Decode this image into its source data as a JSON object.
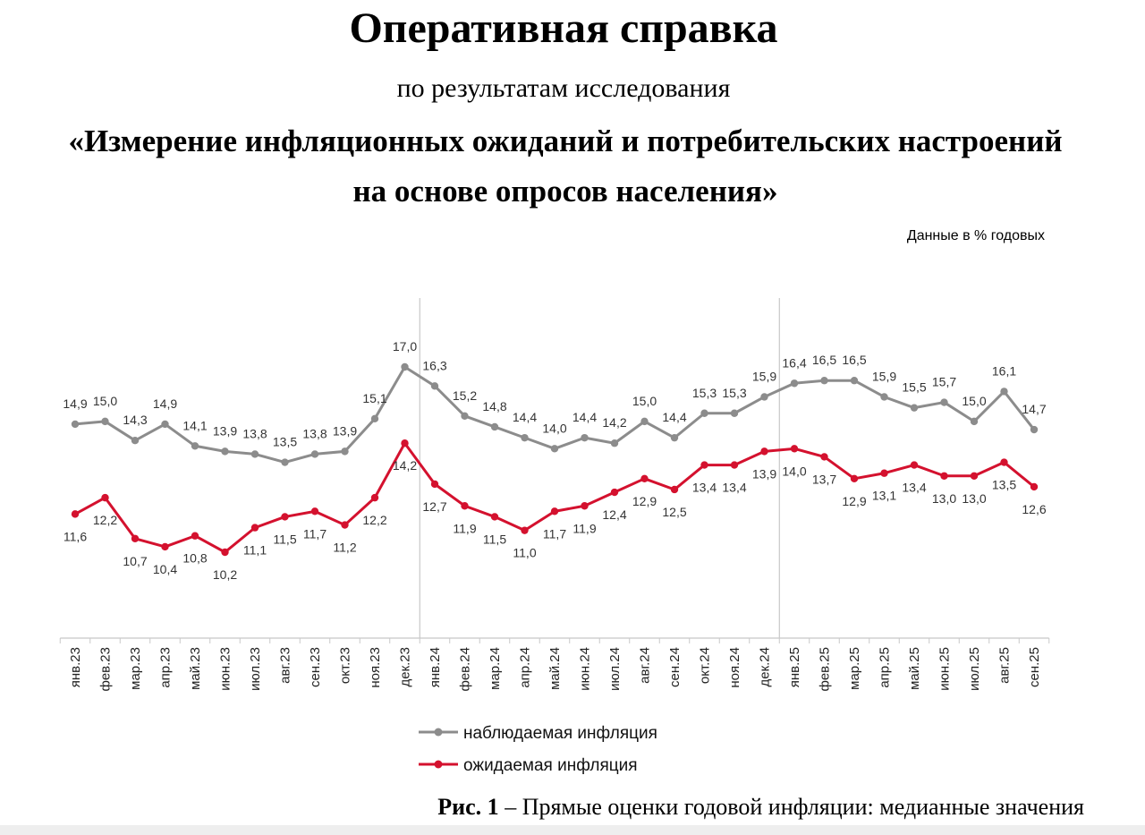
{
  "header": {
    "title": "Оперативная справка",
    "subtitle": "по результатам исследования",
    "topic_line1": "«Измерение инфляционных ожиданий и потребительских настроений",
    "topic_line2": "на основе опросов населения»"
  },
  "units_note": "Данные в % годовых",
  "caption": {
    "fig": "Рис. 1",
    "text": " – Прямые оценки годовой инфляции: медианные значения"
  },
  "colors": {
    "observed": "#8c8c8c",
    "expected": "#d4112e",
    "axis": "#c8c8c8",
    "divider": "#bdbdbd"
  },
  "chart_data": {
    "type": "line",
    "title": "",
    "xlabel": "",
    "ylabel": "",
    "ylim": [
      6,
      19
    ],
    "grid": false,
    "legend": "bottom-center",
    "year_dividers_after": [
      "дек.23",
      "дек.24"
    ],
    "categories": [
      "янв.23",
      "фев.23",
      "мар.23",
      "апр.23",
      "май.23",
      "июн.23",
      "июл.23",
      "авг.23",
      "сен.23",
      "окт.23",
      "ноя.23",
      "дек.23",
      "янв.24",
      "фев.24",
      "мар.24",
      "апр.24",
      "май.24",
      "июн.24",
      "июл.24",
      "авг.24",
      "сен.24",
      "окт.24",
      "ноя.24",
      "дек.24",
      "янв.25",
      "фев.25",
      "мар.25",
      "апр.25",
      "май.25",
      "июн.25",
      "июл.25",
      "авг.25",
      "сен.25"
    ],
    "series": [
      {
        "name": "наблюдаемая инфляция",
        "key": "observed",
        "values": [
          14.9,
          15.0,
          14.3,
          14.9,
          14.1,
          13.9,
          13.8,
          13.5,
          13.8,
          13.9,
          15.1,
          17.0,
          16.3,
          15.2,
          14.8,
          14.4,
          14.0,
          14.4,
          14.2,
          15.0,
          14.4,
          15.3,
          15.3,
          15.9,
          16.4,
          16.5,
          16.5,
          15.9,
          15.5,
          15.7,
          15.0,
          16.1,
          14.7
        ],
        "labels": [
          "14,9",
          "15,0",
          "14,3",
          "14,9",
          "14,1",
          "13,9",
          "13,8",
          "13,5",
          "13,8",
          "13,9",
          "15,1",
          "17,0",
          "16,3",
          "15,2",
          "14,8",
          "14,4",
          "14,0",
          "14,4",
          "14,2",
          "15,0",
          "14,4",
          "15,3",
          "15,3",
          "15,9",
          "16,4",
          "16,5",
          "16,5",
          "15,9",
          "15,5",
          "15,7",
          "15,0",
          "16,1",
          "14,7"
        ]
      },
      {
        "name": "ожидаемая инфляция",
        "key": "expected",
        "values": [
          11.6,
          12.2,
          10.7,
          10.4,
          10.8,
          10.2,
          11.1,
          11.5,
          11.7,
          11.2,
          12.2,
          14.2,
          12.7,
          11.9,
          11.5,
          11.0,
          11.7,
          11.9,
          12.4,
          12.9,
          12.5,
          13.4,
          13.4,
          13.9,
          14.0,
          13.7,
          12.9,
          13.1,
          13.4,
          13.0,
          13.0,
          13.5,
          12.6
        ],
        "labels": [
          "11,6",
          "12,2",
          "10,7",
          "10,4",
          "10,8",
          "10,2",
          "11,1",
          "11,5",
          "11,7",
          "11,2",
          "12,2",
          "14,2",
          "12,7",
          "11,9",
          "11,5",
          "11,0",
          "11,7",
          "11,9",
          "12,4",
          "12,9",
          "12,5",
          "13,4",
          "13,4",
          "13,9",
          "14,0",
          "13,7",
          "12,9",
          "13,1",
          "13,4",
          "13,0",
          "13,0",
          "13,5",
          "12,6"
        ]
      }
    ]
  }
}
